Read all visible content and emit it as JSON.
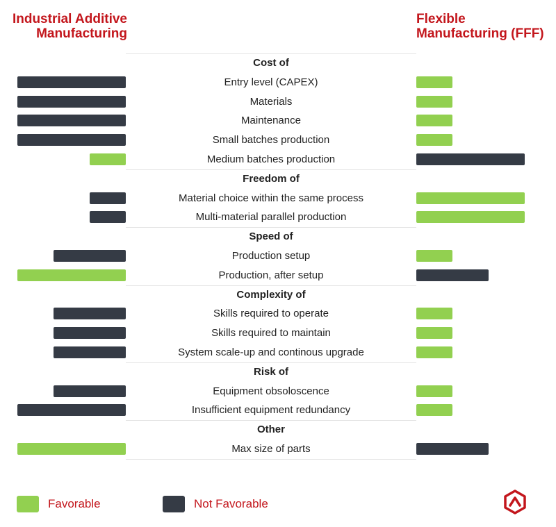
{
  "header": {
    "left_title_line1": "Industrial Additive",
    "left_title_line2": "Manufacturing",
    "right_title_line1": "Flexible",
    "right_title_line2": "Manufacturing (FFF)"
  },
  "colors": {
    "favorable": "#92d050",
    "not_favorable": "#353b45",
    "accent": "#c3161c"
  },
  "legend": {
    "favorable_label": "Favorable",
    "not_favorable_label": "Not Favorable"
  },
  "logo": {
    "icon": "caret-hexagon-logo-icon"
  },
  "chart_data": {
    "type": "bar",
    "title": "",
    "series": [
      {
        "name": "Industrial Additive Manufacturing",
        "side": "left"
      },
      {
        "name": "Flexible Manufacturing (FFF)",
        "side": "right"
      }
    ],
    "scale_max": 3,
    "groups": [
      {
        "name": "Cost of",
        "items": [
          {
            "label": "Entry level (CAPEX)",
            "left": {
              "value": 3,
              "favorable": false
            },
            "right": {
              "value": 1,
              "favorable": true
            }
          },
          {
            "label": "Materials",
            "left": {
              "value": 3,
              "favorable": false
            },
            "right": {
              "value": 1,
              "favorable": true
            }
          },
          {
            "label": "Maintenance",
            "left": {
              "value": 3,
              "favorable": false
            },
            "right": {
              "value": 1,
              "favorable": true
            }
          },
          {
            "label": "Small batches production",
            "left": {
              "value": 3,
              "favorable": false
            },
            "right": {
              "value": 1,
              "favorable": true
            }
          },
          {
            "label": "Medium batches production",
            "left": {
              "value": 1,
              "favorable": true
            },
            "right": {
              "value": 3,
              "favorable": false
            }
          }
        ]
      },
      {
        "name": "Freedom of",
        "items": [
          {
            "label": "Material choice within the same process",
            "left": {
              "value": 1,
              "favorable": false
            },
            "right": {
              "value": 3,
              "favorable": true
            }
          },
          {
            "label": "Multi-material parallel production",
            "left": {
              "value": 1,
              "favorable": false
            },
            "right": {
              "value": 3,
              "favorable": true
            }
          }
        ]
      },
      {
        "name": "Speed of",
        "items": [
          {
            "label": "Production setup",
            "left": {
              "value": 2,
              "favorable": false
            },
            "right": {
              "value": 1,
              "favorable": true
            }
          },
          {
            "label": "Production, after setup",
            "left": {
              "value": 3,
              "favorable": true
            },
            "right": {
              "value": 2,
              "favorable": false
            }
          }
        ]
      },
      {
        "name": "Complexity of",
        "items": [
          {
            "label": "Skills required to operate",
            "left": {
              "value": 2,
              "favorable": false
            },
            "right": {
              "value": 1,
              "favorable": true
            }
          },
          {
            "label": "Skills required to maintain",
            "left": {
              "value": 2,
              "favorable": false
            },
            "right": {
              "value": 1,
              "favorable": true
            }
          },
          {
            "label": "System scale-up and continous upgrade",
            "left": {
              "value": 2,
              "favorable": false
            },
            "right": {
              "value": 1,
              "favorable": true
            }
          }
        ]
      },
      {
        "name": "Risk of",
        "items": [
          {
            "label": "Equipment obsoloscence",
            "left": {
              "value": 2,
              "favorable": false
            },
            "right": {
              "value": 1,
              "favorable": true
            }
          },
          {
            "label": "Insufficient equipment redundancy",
            "left": {
              "value": 3,
              "favorable": false
            },
            "right": {
              "value": 1,
              "favorable": true
            }
          }
        ]
      },
      {
        "name": "Other",
        "items": [
          {
            "label": "Max size of parts",
            "left": {
              "value": 3,
              "favorable": true
            },
            "right": {
              "value": 2,
              "favorable": false
            }
          }
        ]
      }
    ]
  }
}
